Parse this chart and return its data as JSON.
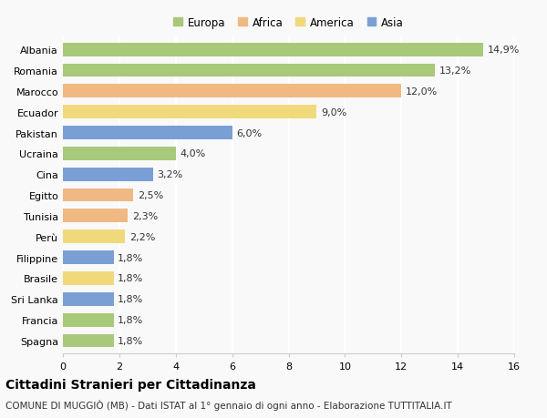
{
  "countries": [
    "Albania",
    "Romania",
    "Marocco",
    "Ecuador",
    "Pakistan",
    "Ucraina",
    "Cina",
    "Egitto",
    "Tunisia",
    "Perù",
    "Filippine",
    "Brasile",
    "Sri Lanka",
    "Francia",
    "Spagna"
  ],
  "values": [
    14.9,
    13.2,
    12.0,
    9.0,
    6.0,
    4.0,
    3.2,
    2.5,
    2.3,
    2.2,
    1.8,
    1.8,
    1.8,
    1.8,
    1.8
  ],
  "continents": [
    "Europa",
    "Europa",
    "Africa",
    "America",
    "Asia",
    "Europa",
    "Asia",
    "Africa",
    "Africa",
    "America",
    "Asia",
    "America",
    "Asia",
    "Europa",
    "Europa"
  ],
  "continent_colors": {
    "Europa": "#a8c87a",
    "Africa": "#f0b984",
    "America": "#f0d97a",
    "Asia": "#7a9fd4"
  },
  "legend_order": [
    "Europa",
    "Africa",
    "America",
    "Asia"
  ],
  "xlim": [
    0,
    16
  ],
  "xticks": [
    0,
    2,
    4,
    6,
    8,
    10,
    12,
    14,
    16
  ],
  "title": "Cittadini Stranieri per Cittadinanza",
  "subtitle": "COMUNE DI MUGGIÒ (MB) - Dati ISTAT al 1° gennaio di ogni anno - Elaborazione TUTTITALIA.IT",
  "background_color": "#f9f9f9",
  "bar_height": 0.65,
  "label_fontsize": 8,
  "tick_fontsize": 8,
  "title_fontsize": 10,
  "subtitle_fontsize": 7.5
}
